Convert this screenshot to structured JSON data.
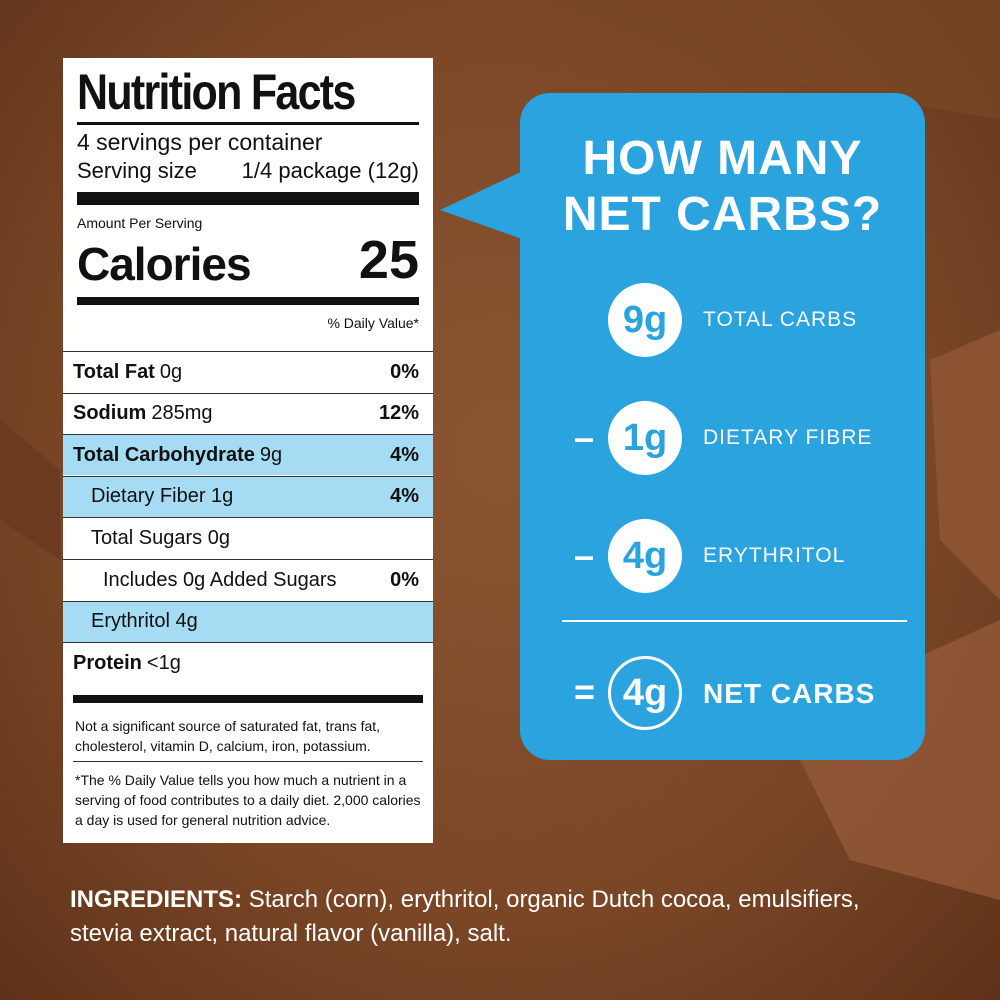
{
  "nutrition_label": {
    "title": "Nutrition Facts",
    "servings": "4 servings per container",
    "serving_size_label": "Serving size",
    "serving_size": "1/4 package (12g)",
    "amount_per_serving": "Amount Per Serving",
    "calories_label": "Calories",
    "calories": 25,
    "daily_value_header": "% Daily Value*",
    "rows": [
      {
        "name": "Total Fat",
        "amount": "0g",
        "dv": "0%"
      },
      {
        "name": "Sodium",
        "amount": "285mg",
        "dv": "12%"
      },
      {
        "name": "Total Carbohydrate",
        "amount": "9g",
        "dv": "4%"
      },
      {
        "name": "Dietary Fiber 1g",
        "dv": "4%"
      },
      {
        "name": "Total Sugars 0g"
      },
      {
        "name": "Includes 0g Added Sugars",
        "dv": "0%"
      },
      {
        "name": "Erythritol 4g"
      },
      {
        "name": "Protein",
        "amount": "<1g"
      }
    ],
    "footnote_1": "Not a significant source of saturated fat, trans fat, cholesterol, vitamin D, calcium, iron, potassium.",
    "footnote_2": "*The % Daily Value tells you how much a nutrient in a serving of food contributes to a daily diet. 2,000 calories a day is used for general nutrition advice."
  },
  "net_carbs": {
    "title_line_1": "HOW MANY",
    "title_line_2": "NET CARBS?",
    "steps": [
      {
        "value": "9g",
        "label": "TOTAL CARBS"
      },
      {
        "operator": "–",
        "value": "1g",
        "label": "DIETARY FIBRE"
      },
      {
        "operator": "–",
        "value": "4g",
        "label": "ERYTHRITOL"
      }
    ],
    "result": {
      "operator": "=",
      "value": "4g",
      "label": "NET CARBS"
    }
  },
  "ingredients": {
    "label": "INGREDIENTS:",
    "text": "Starch (corn), erythritol, organic Dutch cocoa, emulsifiers, stevia extract, natural flavor (vanilla), salt."
  }
}
